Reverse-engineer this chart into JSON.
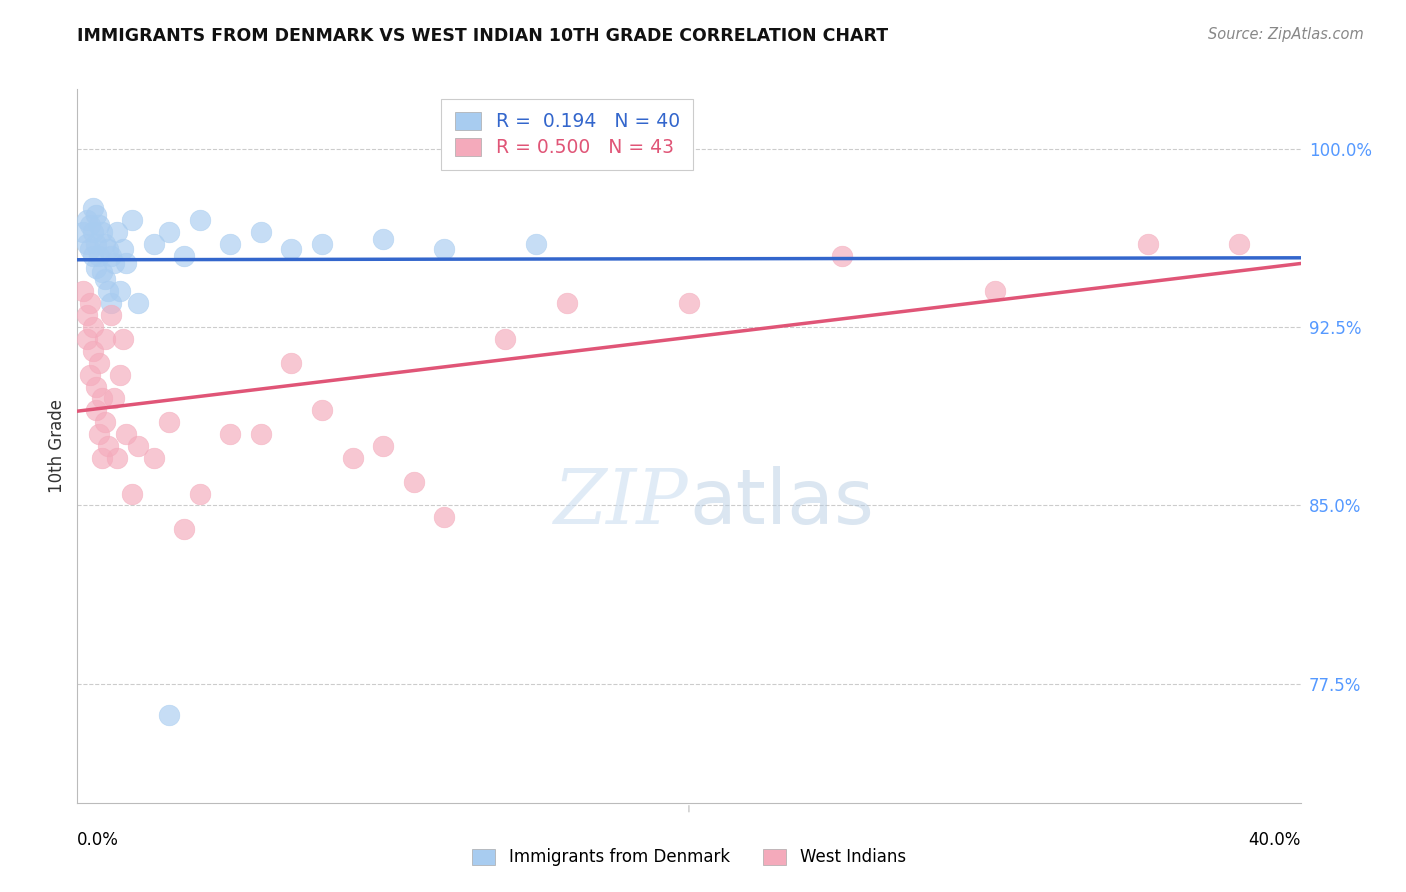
{
  "title": "IMMIGRANTS FROM DENMARK VS WEST INDIAN 10TH GRADE CORRELATION CHART",
  "source": "Source: ZipAtlas.com",
  "ylabel": "10th Grade",
  "y_ticks": [
    0.775,
    0.85,
    0.925,
    1.0
  ],
  "y_tick_labels": [
    "77.5%",
    "85.0%",
    "92.5%",
    "100.0%"
  ],
  "xlim": [
    0.0,
    0.4
  ],
  "ylim": [
    0.725,
    1.025
  ],
  "blue_R": 0.194,
  "blue_N": 40,
  "pink_R": 0.5,
  "pink_N": 43,
  "blue_label": "Immigrants from Denmark",
  "pink_label": "West Indians",
  "blue_color": "#A8CCF0",
  "pink_color": "#F4AABB",
  "blue_line_color": "#3366CC",
  "pink_line_color": "#E05577",
  "blue_x": [
    0.002,
    0.003,
    0.003,
    0.004,
    0.004,
    0.005,
    0.005,
    0.005,
    0.006,
    0.006,
    0.006,
    0.007,
    0.007,
    0.008,
    0.008,
    0.009,
    0.009,
    0.01,
    0.01,
    0.011,
    0.011,
    0.012,
    0.013,
    0.014,
    0.015,
    0.016,
    0.018,
    0.02,
    0.025,
    0.03,
    0.035,
    0.04,
    0.05,
    0.06,
    0.07,
    0.08,
    0.1,
    0.12,
    0.15,
    0.03
  ],
  "blue_y": [
    0.965,
    0.96,
    0.97,
    0.968,
    0.958,
    0.975,
    0.965,
    0.955,
    0.972,
    0.96,
    0.95,
    0.968,
    0.955,
    0.965,
    0.948,
    0.96,
    0.945,
    0.958,
    0.94,
    0.955,
    0.935,
    0.952,
    0.965,
    0.94,
    0.958,
    0.952,
    0.97,
    0.935,
    0.96,
    0.965,
    0.955,
    0.97,
    0.96,
    0.965,
    0.958,
    0.96,
    0.962,
    0.958,
    0.96,
    0.762
  ],
  "pink_x": [
    0.002,
    0.003,
    0.003,
    0.004,
    0.004,
    0.005,
    0.005,
    0.006,
    0.006,
    0.007,
    0.007,
    0.008,
    0.008,
    0.009,
    0.009,
    0.01,
    0.011,
    0.012,
    0.013,
    0.014,
    0.015,
    0.016,
    0.018,
    0.02,
    0.025,
    0.03,
    0.035,
    0.04,
    0.05,
    0.06,
    0.07,
    0.08,
    0.09,
    0.1,
    0.11,
    0.12,
    0.14,
    0.16,
    0.2,
    0.25,
    0.3,
    0.35,
    0.38
  ],
  "pink_y": [
    0.94,
    0.93,
    0.92,
    0.935,
    0.905,
    0.915,
    0.925,
    0.9,
    0.89,
    0.91,
    0.88,
    0.895,
    0.87,
    0.92,
    0.885,
    0.875,
    0.93,
    0.895,
    0.87,
    0.905,
    0.92,
    0.88,
    0.855,
    0.875,
    0.87,
    0.885,
    0.84,
    0.855,
    0.88,
    0.88,
    0.91,
    0.89,
    0.87,
    0.875,
    0.86,
    0.845,
    0.92,
    0.935,
    0.935,
    0.955,
    0.94,
    0.96,
    0.96
  ]
}
